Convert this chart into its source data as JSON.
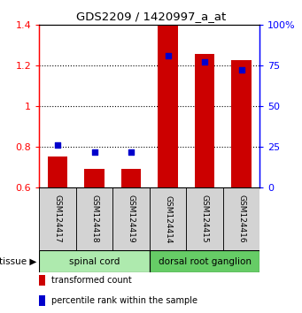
{
  "title": "GDS2209 / 1420997_a_at",
  "samples": [
    "GSM124417",
    "GSM124418",
    "GSM124419",
    "GSM124414",
    "GSM124415",
    "GSM124416"
  ],
  "red_values": [
    0.755,
    0.693,
    0.693,
    1.4,
    1.258,
    1.228
  ],
  "blue_values": [
    0.812,
    0.775,
    0.775,
    1.248,
    1.218,
    1.178
  ],
  "red_base": 0.6,
  "ylim_left": [
    0.6,
    1.4
  ],
  "ylim_right": [
    0,
    100
  ],
  "yticks_left": [
    0.6,
    0.8,
    1.0,
    1.2,
    1.4
  ],
  "yticks_right": [
    0,
    25,
    50,
    75,
    100
  ],
  "ytick_labels_right": [
    "0",
    "25",
    "50",
    "75",
    "100%"
  ],
  "groups": [
    {
      "label": "spinal cord",
      "span": [
        0,
        3
      ],
      "color": "#aeeaae"
    },
    {
      "label": "dorsal root ganglion",
      "span": [
        3,
        6
      ],
      "color": "#66cc66"
    }
  ],
  "tissue_label": "tissue",
  "legend_items": [
    {
      "label": "transformed count",
      "color": "#cc0000"
    },
    {
      "label": "percentile rank within the sample",
      "color": "#0000cc"
    }
  ],
  "bar_color": "#cc0000",
  "dot_color": "#0000cc",
  "sample_box_color": "#d3d3d3",
  "bar_width": 0.55,
  "dot_size": 22
}
